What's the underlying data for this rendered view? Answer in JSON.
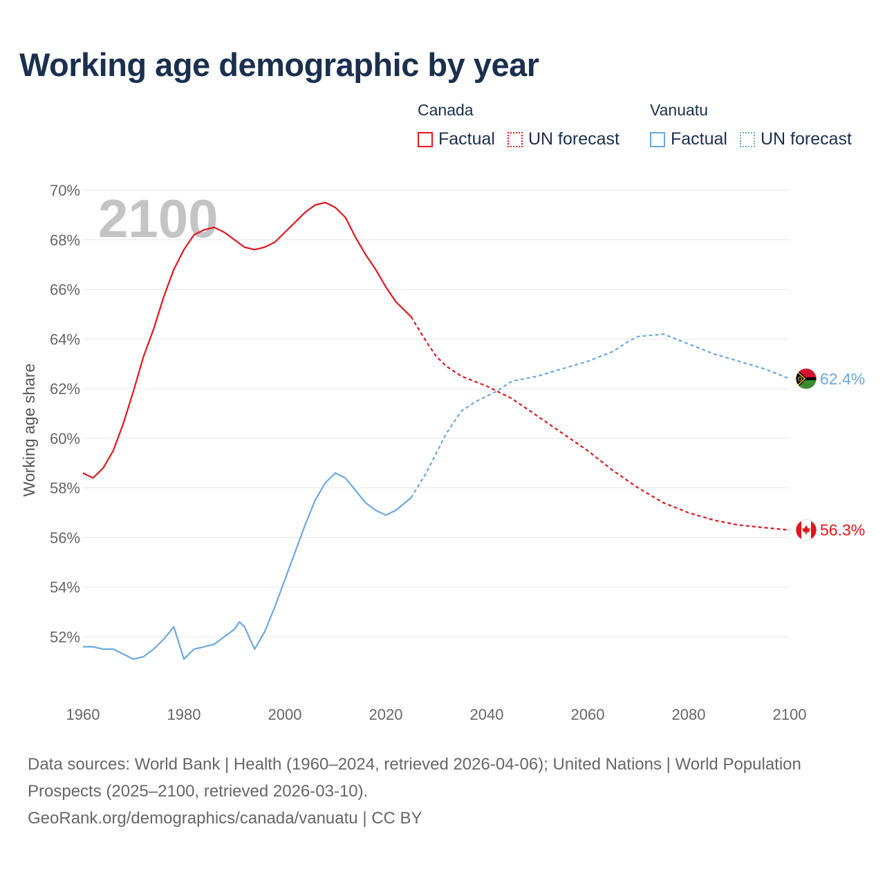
{
  "title": "Working age demographic by year",
  "legend": {
    "canada": {
      "name": "Canada",
      "factual": "Factual",
      "forecast": "UN forecast"
    },
    "vanuatu": {
      "name": "Vanuatu",
      "factual": "Factual",
      "forecast": "UN forecast"
    }
  },
  "colors": {
    "canada": "#e3141b",
    "vanuatu": "#6aa8e0",
    "title": "#1b2f4e"
  },
  "chart_data": {
    "type": "line",
    "title": "Working age demographic by year",
    "ylabel": "Working age share",
    "xlabel": "",
    "xlim": [
      1960,
      2100
    ],
    "ylim": [
      50,
      70
    ],
    "xticks": [
      1960,
      1980,
      2000,
      2020,
      2040,
      2060,
      2080,
      2100
    ],
    "yticks": [
      52,
      54,
      56,
      58,
      60,
      62,
      64,
      66,
      68,
      70
    ],
    "year_watermark": "2100",
    "factual_end_year": 2025,
    "series": [
      {
        "name": "Canada",
        "end_label": "56.3%",
        "points": [
          [
            1960,
            58.6
          ],
          [
            1962,
            58.4
          ],
          [
            1964,
            58.8
          ],
          [
            1966,
            59.5
          ],
          [
            1968,
            60.6
          ],
          [
            1970,
            61.9
          ],
          [
            1972,
            63.3
          ],
          [
            1974,
            64.4
          ],
          [
            1976,
            65.7
          ],
          [
            1978,
            66.8
          ],
          [
            1980,
            67.6
          ],
          [
            1982,
            68.2
          ],
          [
            1984,
            68.4
          ],
          [
            1986,
            68.5
          ],
          [
            1988,
            68.3
          ],
          [
            1990,
            68.0
          ],
          [
            1992,
            67.7
          ],
          [
            1994,
            67.6
          ],
          [
            1996,
            67.7
          ],
          [
            1998,
            67.9
          ],
          [
            2000,
            68.3
          ],
          [
            2002,
            68.7
          ],
          [
            2004,
            69.1
          ],
          [
            2006,
            69.4
          ],
          [
            2008,
            69.5
          ],
          [
            2010,
            69.3
          ],
          [
            2012,
            68.9
          ],
          [
            2014,
            68.1
          ],
          [
            2016,
            67.4
          ],
          [
            2018,
            66.8
          ],
          [
            2020,
            66.1
          ],
          [
            2022,
            65.5
          ],
          [
            2025,
            64.9
          ],
          [
            2028,
            63.9
          ],
          [
            2030,
            63.3
          ],
          [
            2032,
            62.9
          ],
          [
            2035,
            62.5
          ],
          [
            2040,
            62.1
          ],
          [
            2045,
            61.6
          ],
          [
            2050,
            60.9
          ],
          [
            2055,
            60.2
          ],
          [
            2060,
            59.5
          ],
          [
            2065,
            58.7
          ],
          [
            2070,
            58.0
          ],
          [
            2075,
            57.4
          ],
          [
            2080,
            57.0
          ],
          [
            2085,
            56.7
          ],
          [
            2090,
            56.5
          ],
          [
            2095,
            56.4
          ],
          [
            2100,
            56.3
          ]
        ]
      },
      {
        "name": "Vanuatu",
        "end_label": "62.4%",
        "points": [
          [
            1960,
            51.6
          ],
          [
            1962,
            51.6
          ],
          [
            1964,
            51.5
          ],
          [
            1966,
            51.5
          ],
          [
            1968,
            51.3
          ],
          [
            1970,
            51.1
          ],
          [
            1972,
            51.2
          ],
          [
            1974,
            51.5
          ],
          [
            1976,
            51.9
          ],
          [
            1978,
            52.4
          ],
          [
            1980,
            51.1
          ],
          [
            1982,
            51.5
          ],
          [
            1984,
            51.6
          ],
          [
            1986,
            51.7
          ],
          [
            1988,
            52.0
          ],
          [
            1990,
            52.3
          ],
          [
            1991,
            52.6
          ],
          [
            1992,
            52.4
          ],
          [
            1994,
            51.5
          ],
          [
            1996,
            52.2
          ],
          [
            1998,
            53.2
          ],
          [
            2000,
            54.3
          ],
          [
            2002,
            55.4
          ],
          [
            2004,
            56.5
          ],
          [
            2006,
            57.5
          ],
          [
            2008,
            58.2
          ],
          [
            2010,
            58.6
          ],
          [
            2012,
            58.4
          ],
          [
            2014,
            57.9
          ],
          [
            2016,
            57.4
          ],
          [
            2018,
            57.1
          ],
          [
            2020,
            56.9
          ],
          [
            2022,
            57.1
          ],
          [
            2025,
            57.6
          ],
          [
            2028,
            58.6
          ],
          [
            2030,
            59.4
          ],
          [
            2032,
            60.2
          ],
          [
            2035,
            61.1
          ],
          [
            2038,
            61.5
          ],
          [
            2040,
            61.7
          ],
          [
            2042,
            61.9
          ],
          [
            2045,
            62.3
          ],
          [
            2050,
            62.5
          ],
          [
            2055,
            62.8
          ],
          [
            2060,
            63.1
          ],
          [
            2065,
            63.5
          ],
          [
            2068,
            63.9
          ],
          [
            2070,
            64.1
          ],
          [
            2075,
            64.2
          ],
          [
            2080,
            63.8
          ],
          [
            2085,
            63.4
          ],
          [
            2090,
            63.1
          ],
          [
            2095,
            62.8
          ],
          [
            2100,
            62.4
          ]
        ]
      }
    ]
  },
  "footer": {
    "sources": "Data sources: World Bank | Health (1960–2024, retrieved 2026-04-06); United Nations | World Population Prospects (2025–2100, retrieved 2026-03-10).",
    "credit": "GeoRank.org/demographics/canada/vanuatu | CC BY"
  }
}
